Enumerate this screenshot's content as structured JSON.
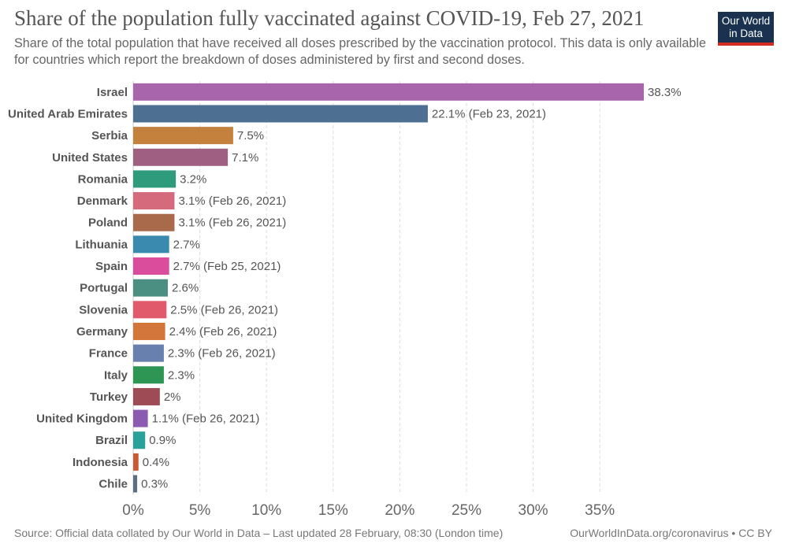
{
  "header": {
    "title": "Share of the population fully vaccinated against COVID-19, Feb 27, 2021",
    "subtitle": "Share of the total population that have received all doses prescribed by the vaccination protocol. This data is only available for countries which report the breakdown of doses administered by first and second doses."
  },
  "logo": {
    "line1": "Our World",
    "line2": "in Data"
  },
  "footer": {
    "source": "Source: Official data collated by Our World in Data – Last updated 28 February, 08:30 (London time)",
    "license": "OurWorldInData.org/coronavirus • CC BY"
  },
  "chart_data": {
    "type": "bar",
    "orientation": "horizontal",
    "title": "Share of the population fully vaccinated against COVID-19, Feb 27, 2021",
    "xlabel": "",
    "ylabel": "",
    "xlim": [
      0,
      38.3
    ],
    "ticks": [
      0,
      5,
      10,
      15,
      20,
      25,
      30,
      35
    ],
    "tick_labels": [
      "0%",
      "5%",
      "10%",
      "15%",
      "20%",
      "25%",
      "30%",
      "35%"
    ],
    "grid": true,
    "categories": [
      "Israel",
      "United Arab Emirates",
      "Serbia",
      "United States",
      "Romania",
      "Denmark",
      "Poland",
      "Lithuania",
      "Spain",
      "Portugal",
      "Slovenia",
      "Germany",
      "France",
      "Italy",
      "Turkey",
      "United Kingdom",
      "Brazil",
      "Indonesia",
      "Chile"
    ],
    "values": [
      38.3,
      22.1,
      7.5,
      7.1,
      3.2,
      3.1,
      3.1,
      2.7,
      2.7,
      2.6,
      2.5,
      2.4,
      2.3,
      2.3,
      2.0,
      1.1,
      0.9,
      0.4,
      0.3
    ],
    "value_labels": [
      "38.3%",
      "22.1% (Feb 23, 2021)",
      "7.5%",
      "7.1%",
      "3.2%",
      "3.1% (Feb 26, 2021)",
      "3.1% (Feb 26, 2021)",
      "2.7%",
      "2.7% (Feb 25, 2021)",
      "2.6%",
      "2.5% (Feb 26, 2021)",
      "2.4% (Feb 26, 2021)",
      "2.3% (Feb 26, 2021)",
      "2.3%",
      "2%",
      "1.1% (Feb 26, 2021)",
      "0.9%",
      "0.4%",
      "0.3%"
    ],
    "colors": [
      "#a965ab",
      "#4d6f92",
      "#c4803d",
      "#9e5f82",
      "#2e9b7c",
      "#d46a7b",
      "#a86a4a",
      "#3a8ab0",
      "#d94d9c",
      "#4b8f82",
      "#e05a6b",
      "#d3763b",
      "#6780ad",
      "#2d9655",
      "#9d4c56",
      "#8a5bb0",
      "#2aa09a",
      "#c95a34",
      "#5b6e82"
    ]
  }
}
